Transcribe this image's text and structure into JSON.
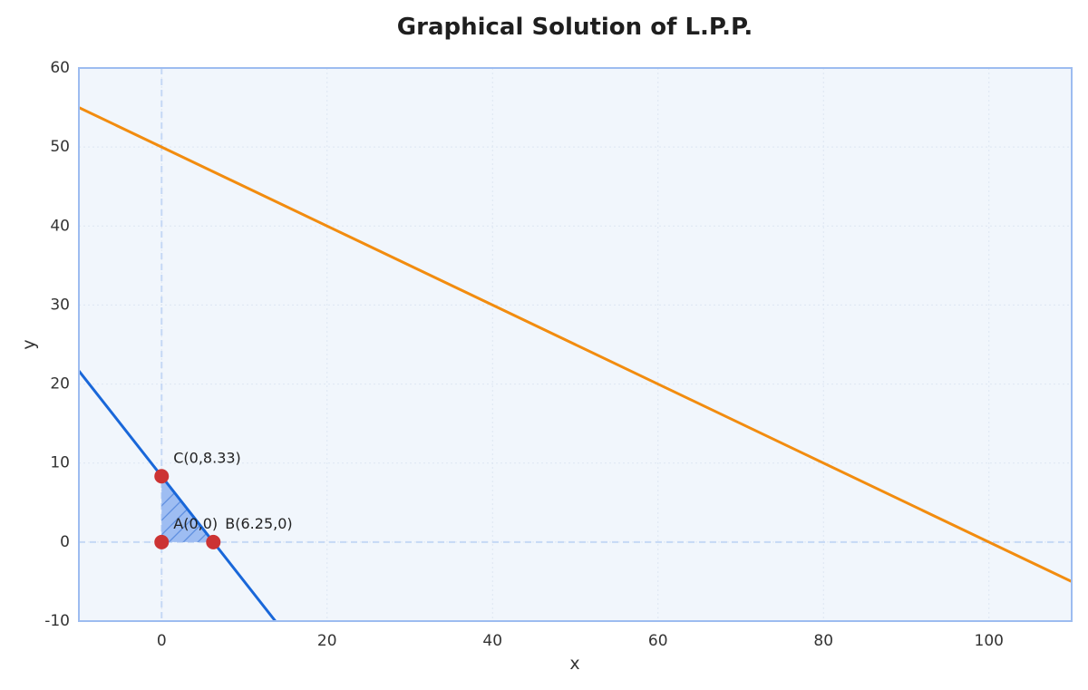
{
  "chart_data": {
    "type": "line",
    "title": "Graphical Solution of L.P.P.",
    "xlabel": "x",
    "ylabel": "y",
    "xlim": [
      -10,
      110
    ],
    "ylim": [
      -10,
      60
    ],
    "x_ticks": [
      0,
      20,
      40,
      60,
      80,
      100
    ],
    "y_ticks": [
      -10,
      0,
      10,
      20,
      30,
      40,
      50,
      60
    ],
    "grid": true,
    "series": [
      {
        "x": [
          -10,
          110
        ],
        "y": [
          55,
          -5
        ],
        "color": "#f28c0f"
      },
      {
        "x": [
          -10,
          13.75
        ],
        "y": [
          21.67,
          -10
        ],
        "color": "#1967d9"
      }
    ],
    "feasible_region": {
      "x": [
        0,
        6.25,
        0
      ],
      "y": [
        0,
        0,
        8.33
      ],
      "color": "#8fb3f0"
    },
    "points": [
      {
        "label": "A(0,0)",
        "x": 0,
        "y": 0
      },
      {
        "label": "B(6.25,0)",
        "x": 6.25,
        "y": 0
      },
      {
        "label": "C(0,8.33)",
        "x": 0,
        "y": 8.33
      }
    ],
    "colors": {
      "plot_background": "#f1f6fc",
      "frame": "#9dbcf0",
      "grid": "#dde6f2",
      "reference_axes": "#c5d8f5",
      "points": "#cc3333"
    }
  }
}
